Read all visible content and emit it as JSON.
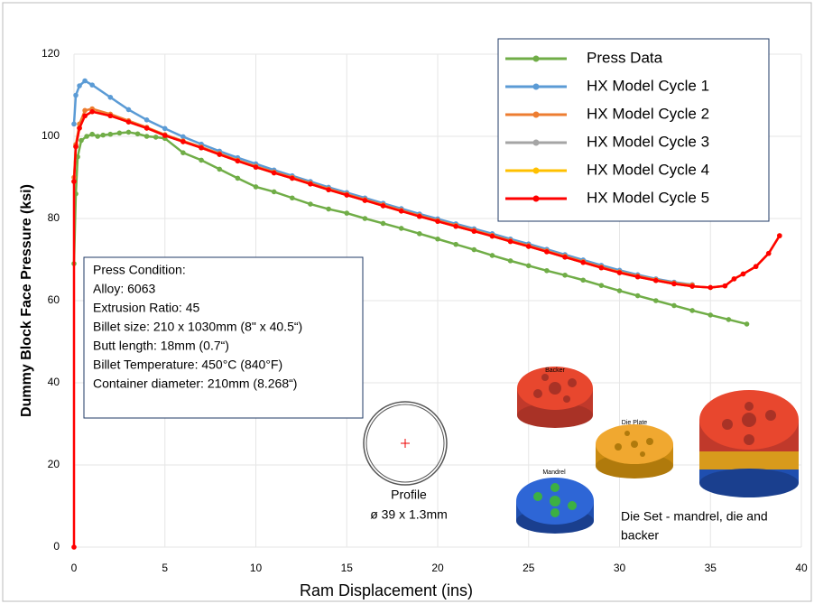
{
  "chart_data": {
    "type": "line",
    "xlabel": "Ram Displacement (ins)",
    "ylabel": "Dummy  Block  Face  Pressure  (ksi)",
    "xlim": [
      0,
      40
    ],
    "xticks": [
      0,
      5,
      10,
      15,
      20,
      25,
      30,
      35,
      40
    ],
    "ylim": [
      0,
      120
    ],
    "yticks": [
      0,
      20,
      40,
      60,
      80,
      100,
      120
    ],
    "grid": true,
    "legend": "upper right",
    "series": [
      {
        "name": "Press Data",
        "color": "#70ad47",
        "x": [
          0,
          0.1,
          0.2,
          0.4,
          0.7,
          1,
          1.3,
          1.6,
          2,
          2.5,
          3,
          3.5,
          4,
          4.5,
          5,
          6,
          7,
          8,
          9,
          10,
          11,
          12,
          13,
          14,
          15,
          16,
          17,
          18,
          19,
          20,
          21,
          22,
          23,
          24,
          25,
          26,
          27,
          28,
          29,
          30,
          31,
          32,
          33,
          34,
          35,
          36,
          37
        ],
        "values": [
          69,
          86,
          95,
          99,
          100,
          100.5,
          100,
          100.3,
          100.5,
          100.8,
          101,
          100.6,
          100,
          99.8,
          99.5,
          96,
          94.2,
          92,
          89.8,
          87.7,
          86.5,
          85,
          83.5,
          82.3,
          81.3,
          80,
          78.8,
          77.6,
          76.3,
          75,
          73.7,
          72.4,
          71,
          69.7,
          68.5,
          67.3,
          66.2,
          65,
          63.7,
          62.4,
          61.2,
          60,
          58.8,
          57.6,
          56.5,
          55.4,
          54.3
        ]
      },
      {
        "name": "HX Model Cycle 1",
        "color": "#5b9bd5",
        "x": [
          0,
          0,
          0.1,
          0.3,
          0.6,
          1,
          2,
          3,
          4,
          5,
          6,
          7,
          8,
          9,
          10,
          11,
          12,
          13,
          14,
          15,
          16,
          17,
          18,
          19,
          20,
          21,
          22,
          23,
          24,
          25,
          26,
          27,
          28,
          29,
          30,
          31,
          32,
          33,
          34,
          35,
          35.8,
          36.3,
          36.8,
          37.5,
          38.2,
          38.8
        ],
        "values": [
          null,
          103,
          110,
          112.3,
          113.5,
          112.5,
          109.5,
          106.5,
          104,
          101.9,
          99.9,
          98.1,
          96.4,
          94.8,
          93.3,
          91.8,
          90.4,
          89,
          87.6,
          86.3,
          85,
          83.7,
          82.4,
          81.1,
          79.9,
          78.7,
          77.5,
          76.3,
          75,
          73.8,
          72.5,
          71.2,
          69.9,
          68.6,
          67.4,
          66.3,
          65.3,
          64.5,
          63.9,
          null,
          null,
          null,
          null,
          null,
          null,
          null
        ]
      },
      {
        "name": "HX Model Cycle 2",
        "color": "#ed7d31",
        "x": [
          0,
          0,
          0.1,
          0.3,
          0.6,
          1,
          2,
          3,
          4,
          5,
          6,
          7,
          8,
          9,
          10,
          11,
          12,
          13,
          14,
          15,
          16,
          17,
          18,
          19,
          20,
          21,
          22,
          23,
          24,
          25,
          26,
          27,
          28,
          29,
          30,
          31,
          32,
          33,
          34,
          35,
          35.8,
          36.3,
          36.8,
          37.5,
          38.2,
          38.8
        ],
        "values": [
          null,
          90,
          98,
          103,
          106.3,
          106.7,
          105.4,
          103.8,
          102.2,
          100.4,
          98.9,
          97.4,
          95.8,
          94.2,
          92.7,
          91.3,
          90,
          88.6,
          87.2,
          85.9,
          84.6,
          83.3,
          82,
          80.7,
          79.5,
          78.3,
          77.1,
          75.9,
          74.6,
          73.4,
          72.1,
          70.8,
          69.5,
          68.2,
          67,
          66,
          65.1,
          64.3,
          63.8,
          null,
          null,
          null,
          null,
          null,
          null,
          null
        ]
      },
      {
        "name": "HX Model Cycle 3",
        "color": "#a5a5a5",
        "x": [
          0,
          0,
          0.1,
          0.3,
          0.6,
          1,
          2,
          3,
          4,
          5,
          6,
          7,
          8,
          9,
          10,
          11,
          12,
          13,
          14,
          15,
          16,
          17,
          18,
          19,
          20,
          21,
          22,
          23,
          24,
          25,
          26,
          27,
          28,
          29,
          30,
          31,
          32,
          33,
          34,
          35,
          35.8,
          36.3,
          36.8,
          37.5,
          38.2,
          38.8
        ],
        "values": [
          null,
          89,
          97.5,
          102,
          105,
          106,
          105,
          103.5,
          102,
          100.2,
          98.7,
          97.2,
          95.6,
          94,
          92.5,
          91.1,
          89.8,
          88.4,
          87,
          85.7,
          84.4,
          83.1,
          81.8,
          80.5,
          79.3,
          78.1,
          76.9,
          75.7,
          74.4,
          73.2,
          71.9,
          70.6,
          69.3,
          68,
          66.8,
          65.8,
          64.9,
          64.1,
          63.5,
          63.2,
          63.6,
          65.3,
          66.5,
          68.3,
          71.5,
          75.8
        ]
      },
      {
        "name": "HX Model Cycle 4",
        "color": "#ffc000",
        "x": [
          0,
          0,
          0.1,
          0.3,
          0.6,
          1,
          2,
          3,
          4,
          5,
          6,
          7,
          8,
          9,
          10,
          11,
          12,
          13,
          14,
          15,
          16,
          17,
          18,
          19,
          20,
          21,
          22,
          23,
          24,
          25,
          26,
          27,
          28,
          29,
          30,
          31,
          32,
          33,
          34,
          35,
          35.8,
          36.3,
          36.8,
          37.5,
          38.2,
          38.8
        ],
        "values": [
          null,
          89,
          97.5,
          102,
          105,
          106,
          105,
          103.5,
          102,
          100.2,
          98.7,
          97.2,
          95.6,
          94,
          92.5,
          91.1,
          89.8,
          88.4,
          87,
          85.7,
          84.4,
          83.1,
          81.8,
          80.5,
          79.3,
          78.1,
          76.9,
          75.7,
          74.4,
          73.2,
          71.9,
          70.6,
          69.3,
          68,
          66.8,
          65.8,
          64.9,
          64.1,
          63.5,
          63.2,
          63.6,
          65.3,
          66.5,
          68.3,
          71.5,
          75.8
        ]
      },
      {
        "name": "HX Model Cycle 5",
        "color": "#ff0000",
        "x": [
          0,
          0,
          0.1,
          0.3,
          0.6,
          1,
          2,
          3,
          4,
          5,
          6,
          7,
          8,
          9,
          10,
          11,
          12,
          13,
          14,
          15,
          16,
          17,
          18,
          19,
          20,
          21,
          22,
          23,
          24,
          25,
          26,
          27,
          28,
          29,
          30,
          31,
          32,
          33,
          34,
          35,
          35.8,
          36.3,
          36.8,
          37.5,
          38.2,
          38.8
        ],
        "values": [
          0,
          89,
          97.5,
          102,
          105,
          106,
          105,
          103.5,
          102,
          100.2,
          98.7,
          97.2,
          95.6,
          94,
          92.5,
          91.1,
          89.8,
          88.4,
          87,
          85.7,
          84.4,
          83.1,
          81.8,
          80.5,
          79.3,
          78.1,
          76.9,
          75.7,
          74.4,
          73.2,
          71.9,
          70.6,
          69.3,
          68,
          66.8,
          65.8,
          64.9,
          64.1,
          63.5,
          63.2,
          63.6,
          65.3,
          66.5,
          68.3,
          71.5,
          75.8
        ]
      }
    ],
    "annotations": {
      "conditions": [
        "Press Condition:",
        "Alloy: 6063",
        "Extrusion Ratio: 45",
        "Billet size: 210 x 1030mm  (8\" x 40.5“)",
        "Butt length:  18mm  (0.7“)",
        "Billet Temperature:  450°C  (840°F)",
        "Container diameter:  210mm  (8.268“)"
      ],
      "profile": [
        "Profile",
        "ø 39 x 1.3mm"
      ],
      "parts": [
        "Backer",
        "Die Plate",
        "Mandrel"
      ],
      "die_set": [
        "Die Set -  mandrel, die and",
        "backer"
      ]
    }
  }
}
